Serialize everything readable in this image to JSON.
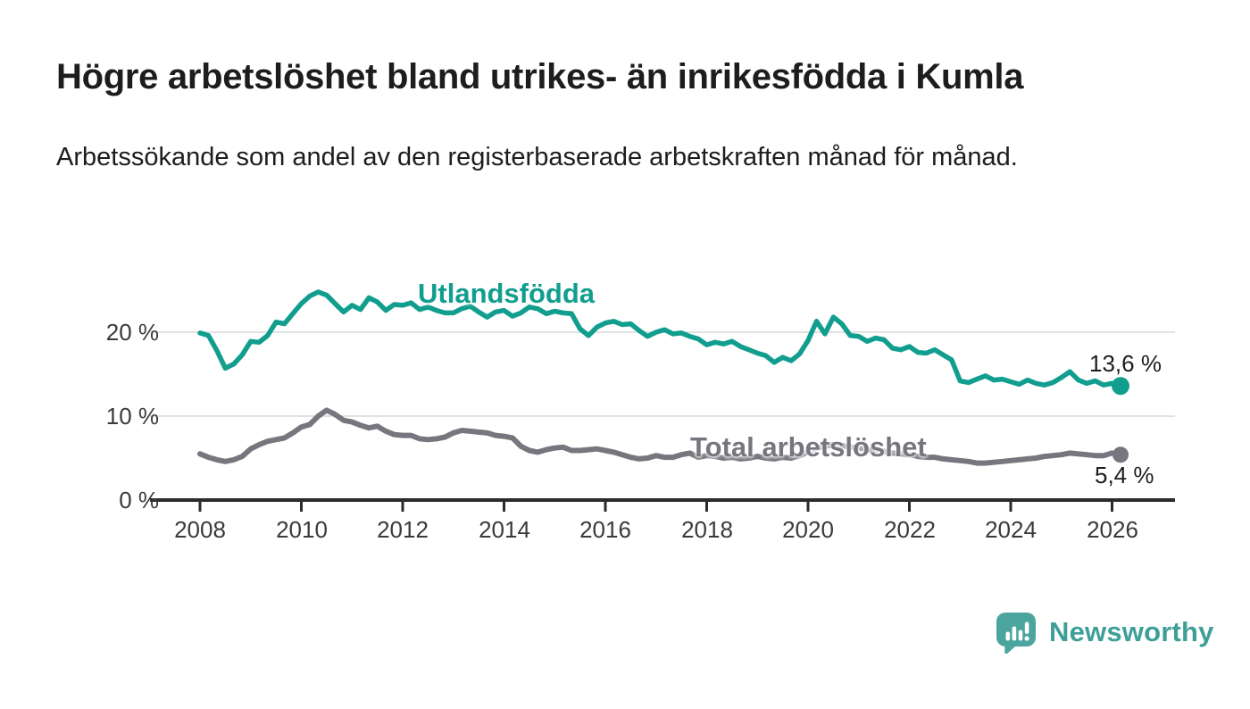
{
  "title": "Högre arbetslöshet bland utrikes- än inrikesfödda i Kumla",
  "subtitle": "Arbetssökande som andel av den registerbaserade arbetskraften månad för månad.",
  "branding": {
    "name": "Newsworthy",
    "text_color": "#3f9f98",
    "bubble_color": "#4ba59e",
    "icon": "speech-bubble-with-bar-chart-and-exclamation"
  },
  "chart_data": {
    "type": "line",
    "x_start": 2008,
    "points_per_year": 6,
    "x_end_approx": 2026.17,
    "xlabel": "",
    "ylabel": "",
    "ylim": [
      0,
      27
    ],
    "grid": "horizontal",
    "gridline_values": [
      10,
      20
    ],
    "y_axis": {
      "labels": [
        {
          "text": "20 %",
          "value": 20
        },
        {
          "text": "10 %",
          "value": 10
        },
        {
          "text": "0 %",
          "value": 0
        }
      ]
    },
    "x_axis": {
      "tick_years": [
        2008,
        2010,
        2012,
        2014,
        2016,
        2018,
        2020,
        2022,
        2024,
        2026
      ],
      "labels": [
        "2008",
        "2010",
        "2012",
        "2014",
        "2016",
        "2018",
        "2020",
        "2022",
        "2024",
        "2026"
      ]
    },
    "series": [
      {
        "name": "Utlandsfödda",
        "color": "#119e8f",
        "end_label": "13,6 %",
        "end_value": 13.6,
        "values": [
          19.9,
          19.6,
          17.8,
          15.7,
          16.2,
          17.3,
          18.9,
          18.8,
          19.6,
          21.2,
          21.0,
          22.2,
          23.4,
          24.3,
          24.8,
          24.4,
          23.4,
          22.4,
          23.2,
          22.7,
          24.1,
          23.6,
          22.6,
          23.3,
          23.2,
          23.5,
          22.7,
          23.0,
          22.6,
          22.3,
          22.3,
          22.8,
          23.1,
          22.4,
          21.8,
          22.4,
          22.6,
          21.9,
          22.3,
          23.0,
          22.8,
          22.2,
          22.5,
          22.3,
          22.2,
          20.4,
          19.6,
          20.6,
          21.1,
          21.3,
          20.9,
          21.0,
          20.2,
          19.5,
          20.0,
          20.3,
          19.8,
          19.9,
          19.5,
          19.2,
          18.5,
          18.8,
          18.6,
          18.9,
          18.3,
          17.9,
          17.5,
          17.2,
          16.4,
          17.0,
          16.6,
          17.4,
          19.0,
          21.3,
          19.8,
          21.8,
          21.0,
          19.6,
          19.5,
          18.9,
          19.3,
          19.1,
          18.1,
          17.9,
          18.3,
          17.6,
          17.5,
          17.9,
          17.3,
          16.7,
          14.2,
          14.0,
          14.4,
          14.8,
          14.3,
          14.4,
          14.1,
          13.8,
          14.3,
          13.9,
          13.7,
          14.0,
          14.6,
          15.3,
          14.3,
          13.9,
          14.2,
          13.7,
          13.9,
          13.6
        ]
      },
      {
        "name": "Total arbetslöshet",
        "color": "#76767e",
        "end_label": "5,4 %",
        "end_value": 5.4,
        "values": [
          5.5,
          5.1,
          4.8,
          4.6,
          4.8,
          5.2,
          6.1,
          6.6,
          7.0,
          7.2,
          7.4,
          8.0,
          8.7,
          9.0,
          10.0,
          10.7,
          10.2,
          9.5,
          9.3,
          8.9,
          8.6,
          8.8,
          8.2,
          7.8,
          7.7,
          7.7,
          7.3,
          7.2,
          7.3,
          7.5,
          8.0,
          8.3,
          8.2,
          8.1,
          8.0,
          7.7,
          7.6,
          7.4,
          6.4,
          5.9,
          5.7,
          6.0,
          6.2,
          6.3,
          5.9,
          5.9,
          6.0,
          6.1,
          5.9,
          5.7,
          5.4,
          5.1,
          4.9,
          5.0,
          5.3,
          5.1,
          5.1,
          5.4,
          5.6,
          5.1,
          5.3,
          5.2,
          5.0,
          5.1,
          4.9,
          5.0,
          5.2,
          5.0,
          4.9,
          5.1,
          5.0,
          5.3,
          5.7,
          6.2,
          6.4,
          6.6,
          6.5,
          6.3,
          6.2,
          6.0,
          5.9,
          5.8,
          5.6,
          5.5,
          5.4,
          5.2,
          5.1,
          5.1,
          4.9,
          4.8,
          4.7,
          4.6,
          4.4,
          4.4,
          4.5,
          4.6,
          4.7,
          4.8,
          4.9,
          5.0,
          5.2,
          5.3,
          5.4,
          5.6,
          5.5,
          5.4,
          5.3,
          5.3,
          5.6,
          5.4
        ]
      }
    ]
  }
}
